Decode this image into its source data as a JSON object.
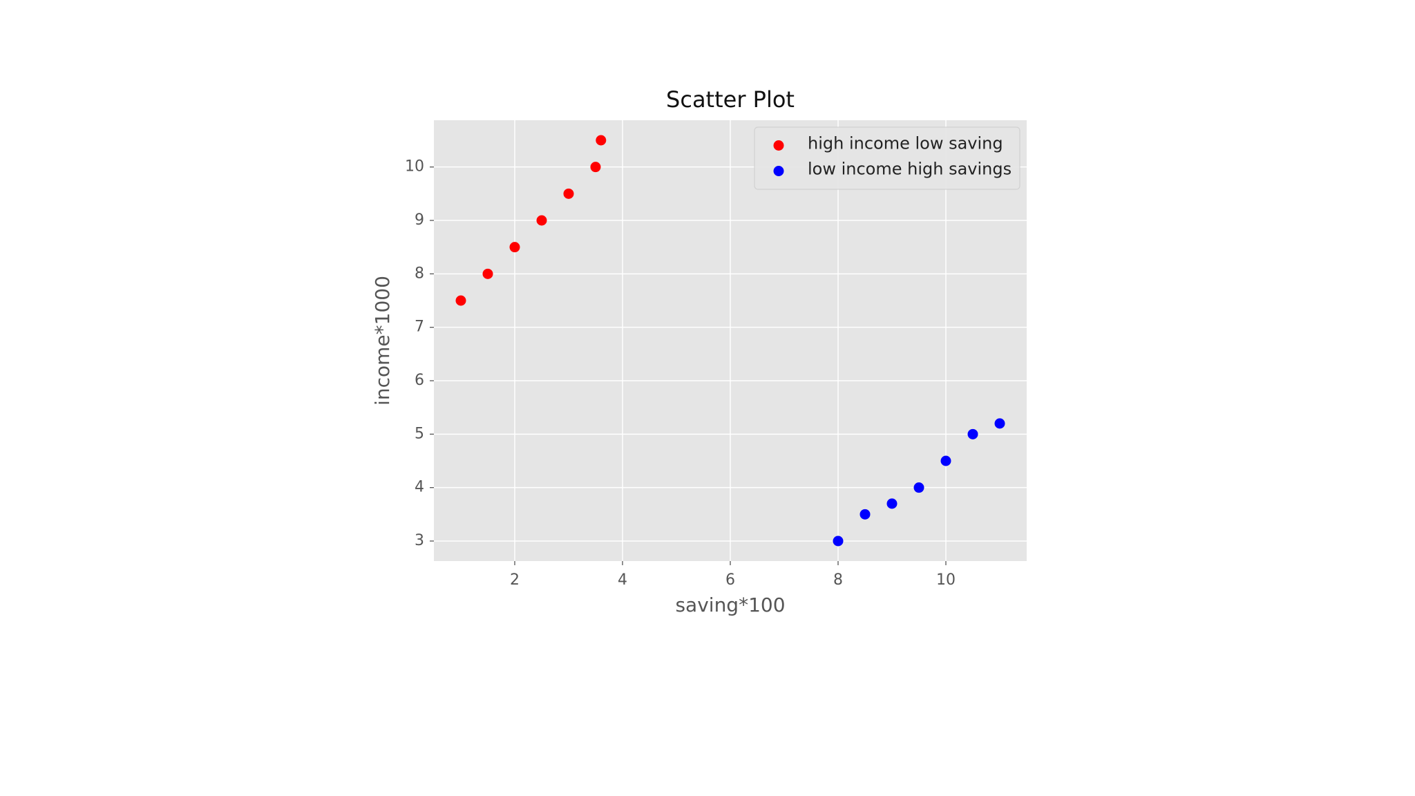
{
  "chart_data": {
    "type": "scatter",
    "title": "Scatter Plot",
    "x_label": "saving*100",
    "y_label": "income*1000",
    "series": [
      {
        "name": "high income low saving",
        "color": "#ff0000",
        "x": [
          1,
          1.5,
          2,
          2.5,
          3,
          3.5,
          3.6
        ],
        "values": [
          7.5,
          8,
          8.5,
          9,
          9.5,
          10,
          10.5
        ]
      },
      {
        "name": "low income high savings",
        "color": "#0000ff",
        "x": [
          8,
          8.5,
          9,
          9.5,
          10,
          10.5,
          11
        ],
        "values": [
          3,
          3.5,
          3.7,
          4,
          4.5,
          5,
          5.2
        ]
      }
    ],
    "xlim": [
      0.5,
      11.5
    ],
    "xticks": [
      2,
      4,
      6,
      8,
      10
    ],
    "ylim": [
      2.625,
      10.875
    ],
    "yticks": [
      3,
      4,
      5,
      6,
      7,
      8,
      9,
      10
    ],
    "grid": true,
    "legend": "upper right"
  }
}
